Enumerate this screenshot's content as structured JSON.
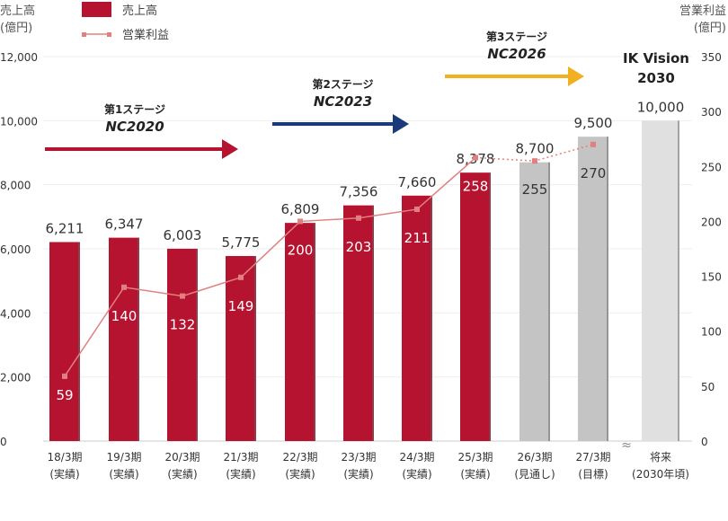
{
  "chart_data": {
    "type": "bar",
    "left_axis_label": [
      "売上高",
      "(億円)"
    ],
    "right_axis_label": [
      "営業利益",
      "(億円)"
    ],
    "left_ylim": [
      0,
      12000
    ],
    "left_ticks": [
      "0",
      "2,000",
      "4,000",
      "6,000",
      "8,000",
      "10,000",
      "12,000"
    ],
    "right_ylim": [
      0,
      350
    ],
    "right_ticks": [
      "0",
      "50",
      "100",
      "150",
      "200",
      "250",
      "300",
      "350"
    ],
    "legend": {
      "bar": "売上高",
      "line": "営業利益"
    },
    "categories": [
      [
        "18/3期",
        "(実績)"
      ],
      [
        "19/3期",
        "(実績)"
      ],
      [
        "20/3期",
        "(実績)"
      ],
      [
        "21/3期",
        "(実績)"
      ],
      [
        "22/3期",
        "(実績)"
      ],
      [
        "23/3期",
        "(実績)"
      ],
      [
        "24/3期",
        "(実績)"
      ],
      [
        "25/3期",
        "(実績)"
      ],
      [
        "26/3期",
        "(見通し)"
      ],
      [
        "27/3期",
        "(目標)"
      ],
      [
        "将来",
        "(2030年頃)"
      ]
    ],
    "series": [
      {
        "name": "売上高",
        "type": "bar",
        "values": [
          6211,
          6347,
          6003,
          5775,
          6809,
          7356,
          7660,
          8378,
          8700,
          9500,
          10000
        ],
        "labels": [
          "6,211",
          "6,347",
          "6,003",
          "5,775",
          "6,809",
          "7,356",
          "7,660",
          "8,378",
          "8,700",
          "9,500",
          "10,000"
        ],
        "kind": [
          "actual",
          "actual",
          "actual",
          "actual",
          "actual",
          "actual",
          "actual",
          "actual",
          "forecast",
          "target",
          "vision"
        ]
      },
      {
        "name": "営業利益",
        "type": "line",
        "axis": "right",
        "values": [
          59,
          140,
          132,
          149,
          200,
          203,
          211,
          258,
          255,
          270,
          null
        ],
        "labels": [
          "59",
          "140",
          "132",
          "149",
          "200",
          "203",
          "211",
          "258",
          "255",
          "270",
          ""
        ]
      }
    ],
    "colors": {
      "actual": "#b5132f",
      "forecast": "#c4c4c4",
      "vision": "#e0e0e0",
      "line": "#e08080",
      "stage1": "#b5132f",
      "stage2": "#1a3a7a",
      "stage3": "#f0b020"
    },
    "stages": [
      {
        "label": "第1ステージ",
        "name": "NC2020"
      },
      {
        "label": "第2ステージ",
        "name": "NC2023"
      },
      {
        "label": "第3ステージ",
        "name": "NC2026"
      }
    ],
    "vision": [
      "IK Vision",
      "2030"
    ]
  }
}
